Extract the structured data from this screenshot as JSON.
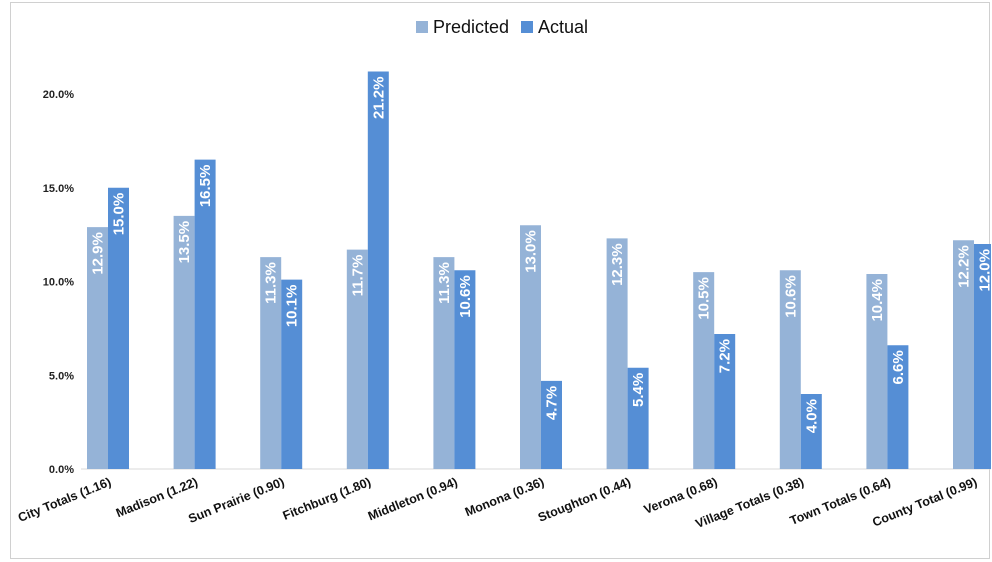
{
  "chart_data": {
    "type": "bar",
    "categories": [
      "City Totals (1.16)",
      "Madison (1.22)",
      "Sun Prairie (0.90)",
      "Fitchburg (1.80)",
      "Middleton (0.94)",
      "Monona (0.36)",
      "Stoughton (0.44)",
      "Verona (0.68)",
      "Village Totals (0.38)",
      "Town Totals (0.64)",
      "County Total (0.99)"
    ],
    "series": [
      {
        "name": "Predicted",
        "color": "#95b3d7",
        "values": [
          12.9,
          13.5,
          11.3,
          11.7,
          11.3,
          13.0,
          12.3,
          10.5,
          10.6,
          10.4,
          12.2
        ],
        "labels": [
          "12.9%",
          "13.5%",
          "11.3%",
          "11.7%",
          "11.3%",
          "13.0%",
          "12.3%",
          "10.5%",
          "10.6%",
          "10.4%",
          "12.2%"
        ]
      },
      {
        "name": "Actual",
        "color": "#558ed5",
        "values": [
          15.0,
          16.5,
          10.1,
          21.2,
          10.6,
          4.7,
          5.4,
          7.2,
          4.0,
          6.6,
          12.0
        ],
        "labels": [
          "15.0%",
          "16.5%",
          "10.1%",
          "21.2%",
          "10.6%",
          "4.7%",
          "5.4%",
          "7.2%",
          "4.0%",
          "6.6%",
          "12.0%"
        ]
      }
    ],
    "yticks": [
      0,
      5,
      10,
      15,
      20
    ],
    "ytick_labels": [
      "0.0%",
      "5.0%",
      "10.0%",
      "15.0%",
      "20.0%"
    ],
    "ylim": [
      0,
      22
    ],
    "title": "",
    "xlabel": "",
    "ylabel": "",
    "grid": false,
    "legend": "top-center"
  }
}
